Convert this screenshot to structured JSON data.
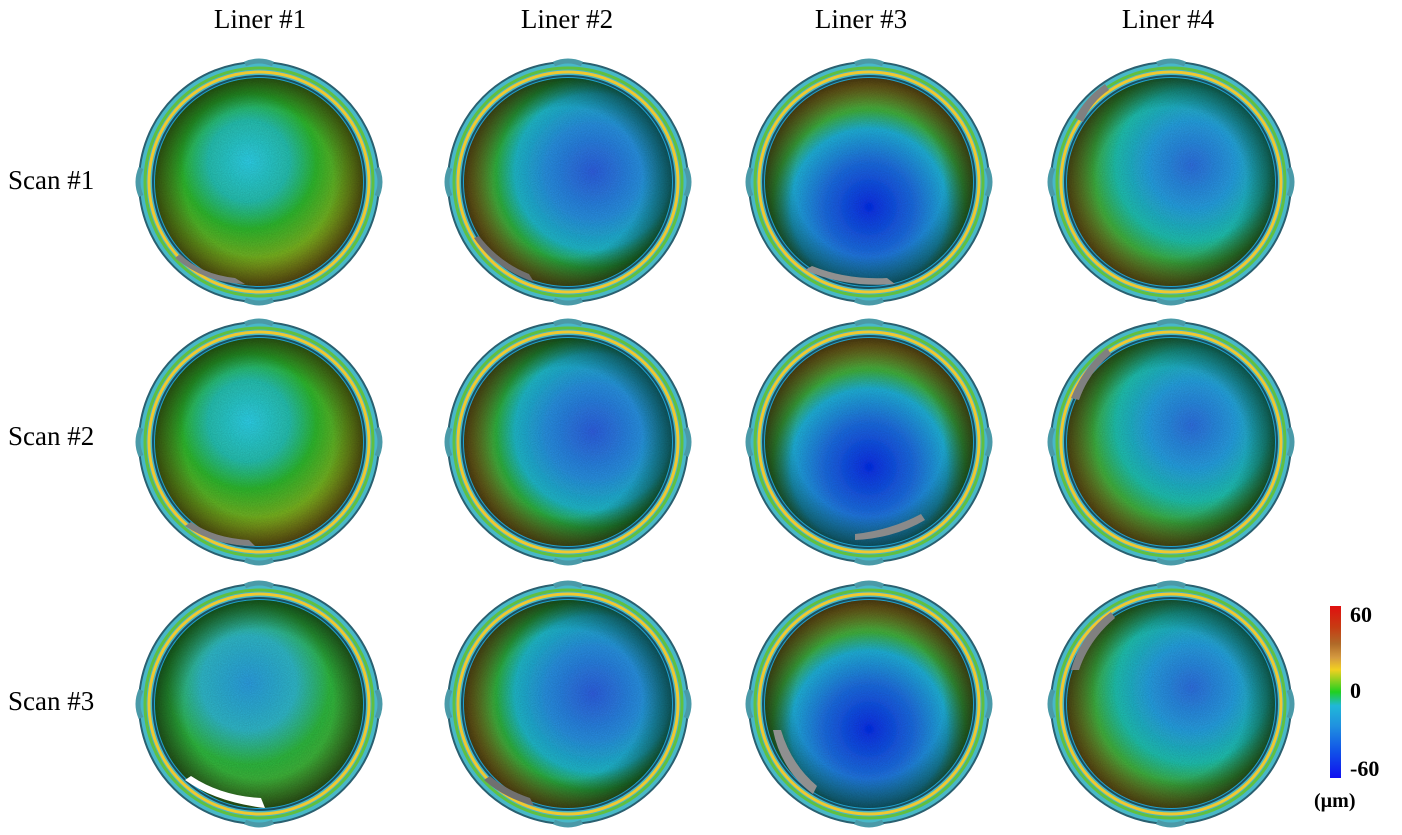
{
  "columns": [
    "Liner #1",
    "Liner #2",
    "Liner #3",
    "Liner #4"
  ],
  "rows": [
    "Scan #1",
    "Scan #2",
    "Scan #3"
  ],
  "colorbar": {
    "max_label": "60",
    "mid_label": "0",
    "min_label": "-60",
    "unit": "(µm)",
    "colors": [
      "#e01010",
      "#b06a28",
      "#f2d020",
      "#20d020",
      "#20b8d8",
      "#1050e8",
      "#1010f0"
    ]
  }
}
